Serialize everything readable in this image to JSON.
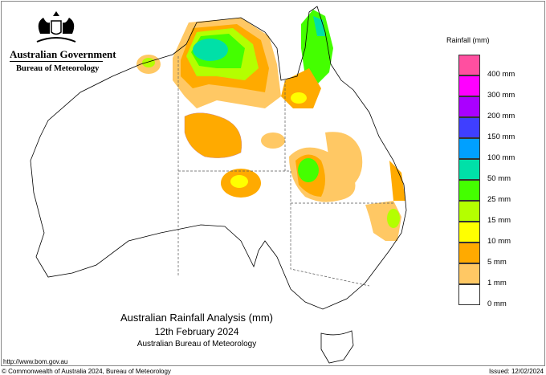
{
  "header": {
    "government": "Australian Government",
    "agency": "Bureau of Meteorology"
  },
  "map": {
    "title": "Australian Rainfall Analysis (mm)",
    "date": "12th February 2024",
    "source": "Australian Bureau of Meteorology"
  },
  "legend": {
    "title": "Rainfall (mm)",
    "bins": [
      {
        "color": "#ff4fa0"
      },
      {
        "color": "#ff00ff",
        "label": "400 mm"
      },
      {
        "color": "#aa00ff",
        "label": "300 mm"
      },
      {
        "color": "#3f3fff",
        "label": "200 mm"
      },
      {
        "color": "#00a0ff",
        "label": "150 mm"
      },
      {
        "color": "#00e0a8",
        "label": "100 mm"
      },
      {
        "color": "#44ff00",
        "label": "50 mm"
      },
      {
        "color": "#b4ff00",
        "label": "25 mm"
      },
      {
        "color": "#ffff00",
        "label": "15 mm"
      },
      {
        "color": "#ffaa00",
        "label": "10 mm"
      },
      {
        "color": "#ffc864",
        "label": "5 mm"
      },
      {
        "color": "#ffffff",
        "label": "1 mm"
      }
    ],
    "bottom_label": "0 mm"
  },
  "footer": {
    "url": "http://www.bom.gov.au",
    "copyright": "© Commonwealth of Australia 2024, Bureau of Meteorology",
    "issued": "Issued: 12/02/2024"
  }
}
